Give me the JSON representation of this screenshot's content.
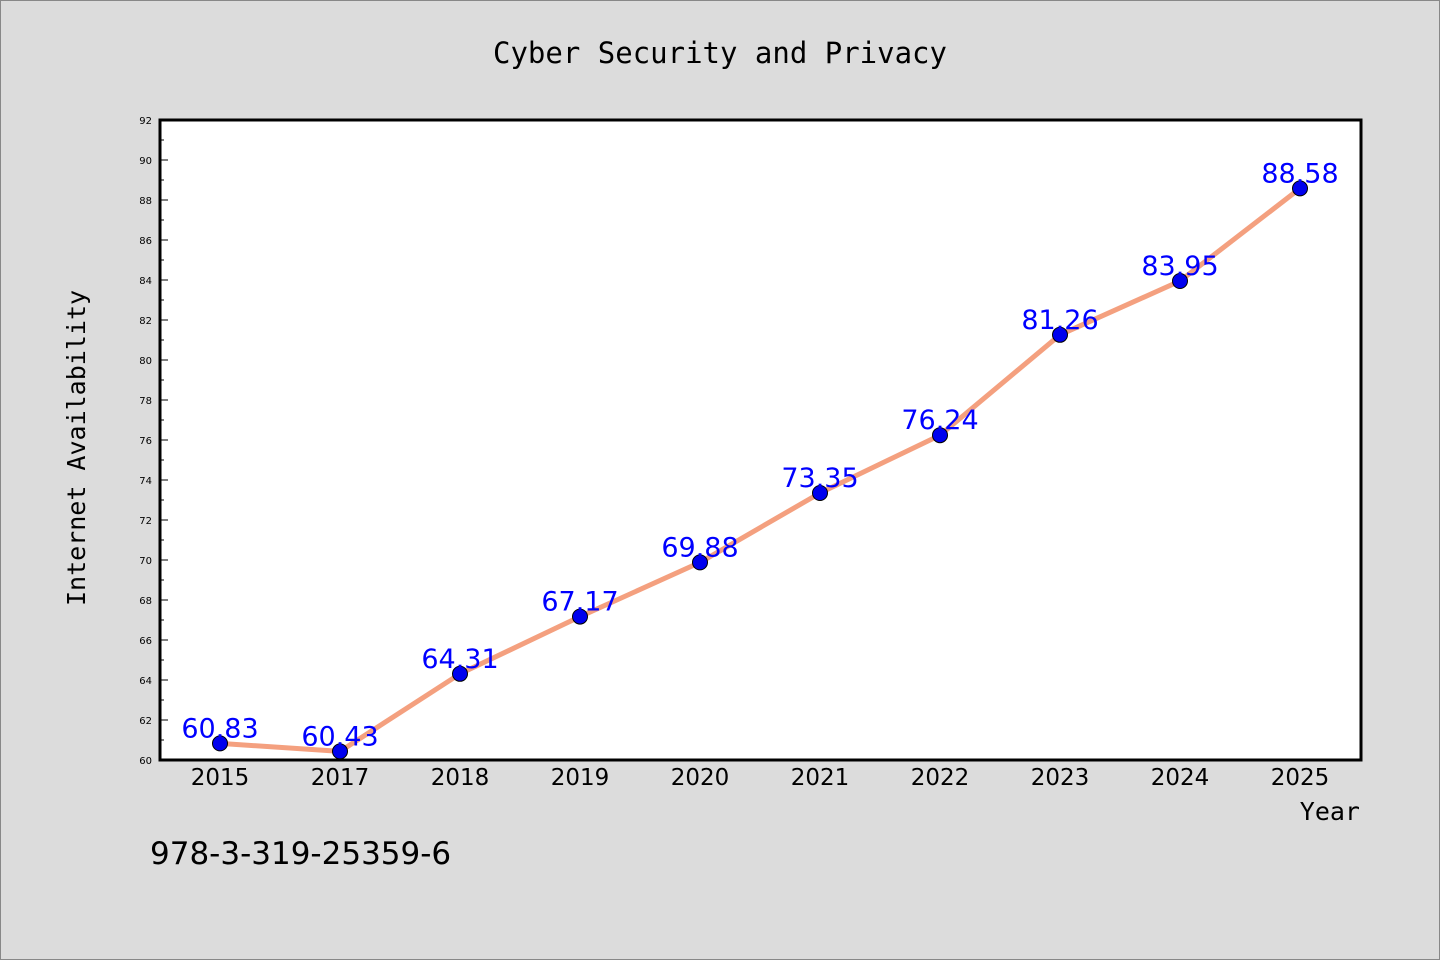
{
  "chart_data": {
    "type": "line",
    "title": "Cyber Security and Privacy",
    "xlabel": "Year",
    "ylabel": "Internet Availability",
    "categories": [
      "2015",
      "2017",
      "2018",
      "2019",
      "2020",
      "2021",
      "2022",
      "2023",
      "2024",
      "2025"
    ],
    "series": [
      {
        "values": [
          60.83,
          60.43,
          64.31,
          67.17,
          69.88,
          73.35,
          76.24,
          81.26,
          83.95,
          88.58
        ],
        "line_color": "#f4a07f",
        "marker_color": "#0000ee"
      }
    ],
    "data_labels": [
      "60.83",
      "60.43",
      "64.31",
      "67.17",
      "69.88",
      "73.35",
      "76.24",
      "81.26",
      "83.95",
      "88.58"
    ],
    "ylim": [
      60,
      92
    ],
    "yticks": [
      60,
      62,
      64,
      66,
      68,
      70,
      72,
      74,
      76,
      78,
      80,
      82,
      84,
      86,
      88,
      90,
      92
    ],
    "grid": false,
    "legend": false,
    "label_color": "#0000ff",
    "annotation": "978-3-319-25359-6"
  }
}
